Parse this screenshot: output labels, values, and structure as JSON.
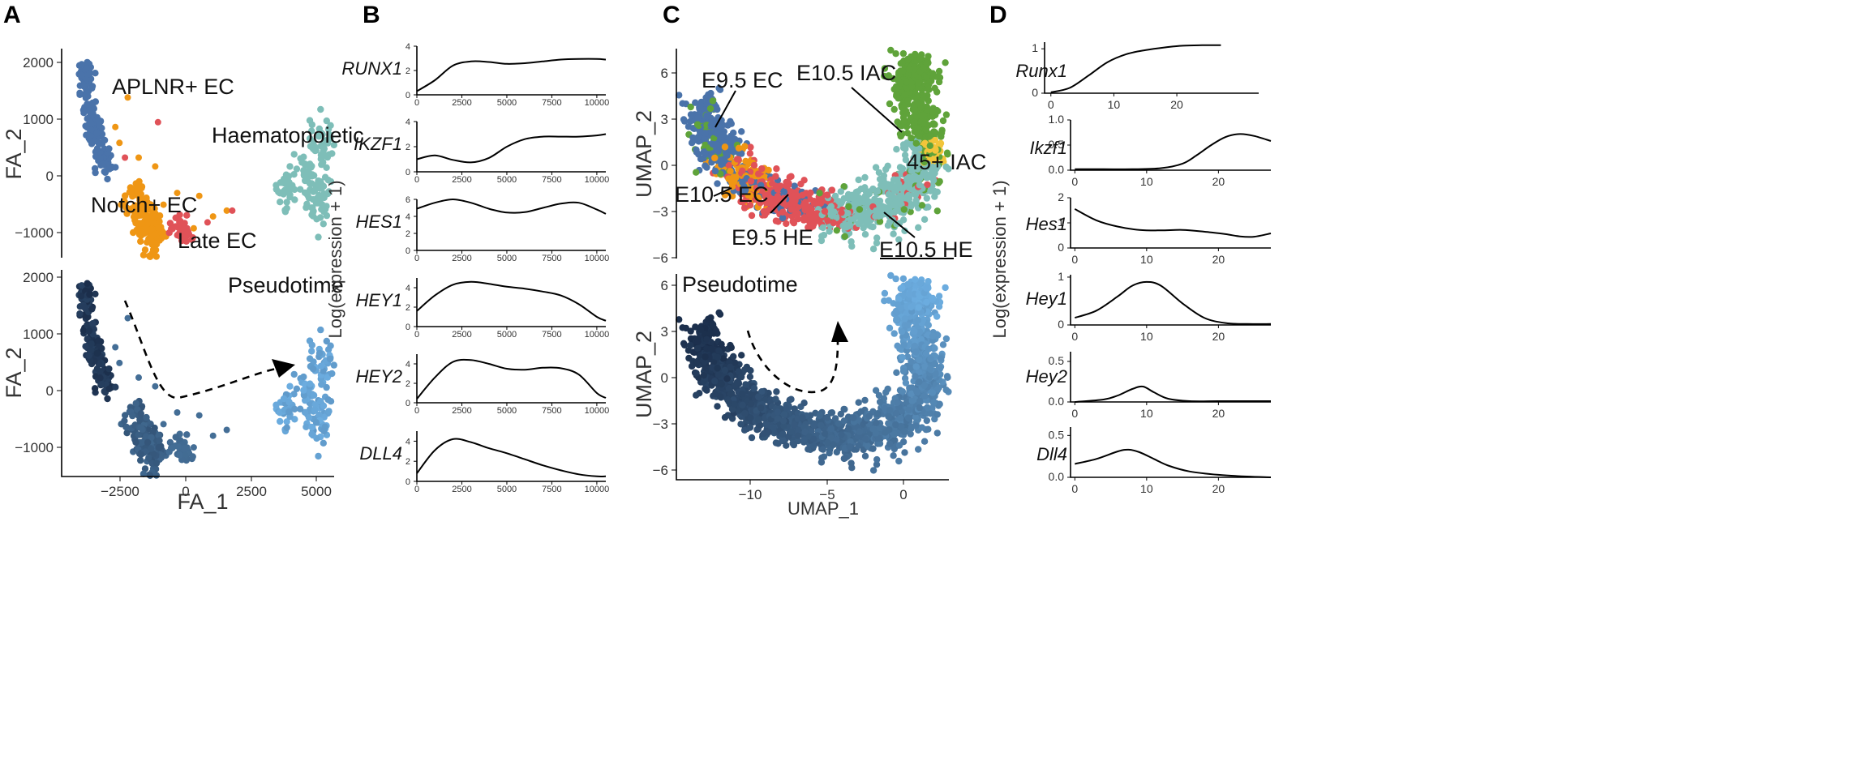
{
  "panel_labels": [
    "A",
    "B",
    "C",
    "D"
  ],
  "colors": {
    "aplnr": "#4a73aa",
    "notch": "#ef9614",
    "late": "#e05258",
    "haem": "#7ebeb8",
    "iac": "#5fa33a",
    "iac45": "#f2c53a",
    "pseudo_start": "#1b2e4b",
    "pseudo_end": "#6cade0"
  },
  "chart_data": [
    {
      "id": "A_top",
      "type": "scatter",
      "xlabel": "",
      "ylabel": "FA_2",
      "y_ticks": [
        "2000",
        "1000",
        "0",
        "−1000"
      ],
      "xlim": [
        -4700,
        5200
      ],
      "ylim": [
        -1400,
        2150
      ],
      "annotations": [
        "APLNR+ EC",
        "Haematopoietic",
        "Notch+ EC",
        "Late EC"
      ],
      "series": [
        {
          "name": "APLNR+ EC",
          "color": "#4a73aa",
          "centroid": [
            -3800,
            1300
          ]
        },
        {
          "name": "Notch+ EC",
          "color": "#ef9614",
          "centroid": [
            -1700,
            -700
          ]
        },
        {
          "name": "Late EC",
          "color": "#e05258",
          "centroid": [
            -300,
            -950
          ]
        },
        {
          "name": "Haematopoietic",
          "color": "#7ebeb8",
          "centroid": [
            4300,
            -250
          ]
        }
      ]
    },
    {
      "id": "A_bottom",
      "type": "scatter",
      "title": "Pseudotime",
      "xlabel": "FA_1",
      "ylabel": "FA_2",
      "x_ticks": [
        "−2500",
        "0",
        "2500",
        "5000"
      ],
      "y_ticks": [
        "2000",
        "1000",
        "0",
        "−1000"
      ],
      "xlim": [
        -4700,
        5200
      ],
      "ylim": [
        -1400,
        2150
      ]
    },
    {
      "id": "B",
      "type": "line",
      "ylabel": "Log(expression + 1)",
      "x_ticks": [
        "0",
        "2500",
        "5000",
        "7500",
        "10000"
      ],
      "xlim": [
        0,
        10500
      ],
      "series": [
        {
          "name": "RUNX1",
          "y_ticks": [
            "4",
            "2",
            "0"
          ],
          "ylim": [
            0,
            4
          ],
          "x": [
            0,
            1000,
            2000,
            3000,
            4000,
            5000,
            6000,
            7000,
            8000,
            9000,
            10000,
            10500
          ],
          "y": [
            0.3,
            1.2,
            2.4,
            2.75,
            2.7,
            2.55,
            2.6,
            2.75,
            2.9,
            2.95,
            2.95,
            2.9
          ]
        },
        {
          "name": "IKZF1",
          "y_ticks": [
            "4",
            "2",
            "0"
          ],
          "ylim": [
            0,
            4
          ],
          "x": [
            0,
            1000,
            2000,
            3000,
            4000,
            5000,
            6000,
            7000,
            8000,
            9000,
            10000,
            10500
          ],
          "y": [
            1.0,
            1.3,
            0.95,
            0.75,
            1.1,
            2.0,
            2.6,
            2.8,
            2.8,
            2.8,
            2.9,
            3.0
          ]
        },
        {
          "name": "HES1",
          "y_ticks": [
            "6",
            "4",
            "2",
            "0"
          ],
          "ylim": [
            0,
            6
          ],
          "x": [
            0,
            1000,
            2000,
            3000,
            4000,
            5000,
            6000,
            7000,
            8000,
            9000,
            10000,
            10500
          ],
          "y": [
            4.9,
            5.6,
            6.0,
            5.6,
            4.9,
            4.45,
            4.5,
            5.0,
            5.5,
            5.6,
            4.8,
            4.3
          ]
        },
        {
          "name": "HEY1",
          "y_ticks": [
            "4",
            "2",
            "0"
          ],
          "ylim": [
            0,
            5
          ],
          "x": [
            0,
            1000,
            2000,
            3000,
            4000,
            5000,
            6000,
            7000,
            8000,
            9000,
            10000,
            10500
          ],
          "y": [
            1.6,
            3.2,
            4.3,
            4.6,
            4.4,
            4.1,
            3.9,
            3.6,
            3.2,
            2.3,
            1.0,
            0.6
          ]
        },
        {
          "name": "HEY2",
          "y_ticks": [
            "4",
            "2",
            "0"
          ],
          "ylim": [
            0,
            5
          ],
          "x": [
            0,
            1000,
            2000,
            3000,
            4000,
            5000,
            6000,
            7000,
            8000,
            9000,
            10000,
            10500
          ],
          "y": [
            0.4,
            2.6,
            4.2,
            4.4,
            4.0,
            3.5,
            3.4,
            3.6,
            3.55,
            2.9,
            1.0,
            0.5
          ]
        },
        {
          "name": "DLL4",
          "y_ticks": [
            "4",
            "2",
            "0"
          ],
          "ylim": [
            0,
            5
          ],
          "x": [
            0,
            1000,
            2000,
            3000,
            4000,
            5000,
            6000,
            7000,
            8000,
            9000,
            10000,
            10500
          ],
          "y": [
            0.8,
            3.1,
            4.2,
            3.9,
            3.3,
            2.8,
            2.2,
            1.6,
            1.1,
            0.7,
            0.5,
            0.5
          ]
        }
      ]
    },
    {
      "id": "C_top",
      "type": "scatter",
      "ylabel": "UMAP_2",
      "y_ticks": [
        "6",
        "3",
        "0",
        "−3",
        "−6"
      ],
      "xlim": [
        -15,
        2.8
      ],
      "ylim": [
        -6.3,
        7
      ],
      "annotations": [
        "E9.5 EC",
        "E10.5 IAC",
        "45+ IAC",
        "E10.5 EC",
        "E9.5 HE",
        "E10.5 HE"
      ],
      "series": [
        {
          "name": "E9.5 EC",
          "color": "#4a73aa",
          "centroid": [
            -13,
            2.5
          ]
        },
        {
          "name": "E10.5 EC",
          "color": "#ef9614",
          "centroid": [
            -12.5,
            0.3
          ]
        },
        {
          "name": "E9.5 HE",
          "color": "#e05258",
          "centroid": [
            -8.3,
            -2.6
          ]
        },
        {
          "name": "E10.5 HE",
          "color": "#7ebeb8",
          "centroid": [
            -2.5,
            -3.0
          ]
        },
        {
          "name": "E10.5 IAC",
          "color": "#5fa33a",
          "centroid": [
            0.5,
            3.5
          ]
        },
        {
          "name": "45+ IAC",
          "color": "#f2c53a",
          "centroid": [
            1.7,
            0.8
          ]
        }
      ]
    },
    {
      "id": "C_bottom",
      "type": "scatter",
      "title": "Pseudotime",
      "xlabel": "UMAP_1",
      "ylabel": "UMAP_2",
      "x_ticks": [
        "−10",
        "−5",
        "0"
      ],
      "y_ticks": [
        "6",
        "3",
        "0",
        "−3",
        "−6"
      ],
      "xlim": [
        -15,
        2.8
      ],
      "ylim": [
        -6.3,
        7
      ]
    },
    {
      "id": "D",
      "type": "line",
      "ylabel": "Log(expression + 1)",
      "x_ticks": [
        "0",
        "10",
        "20"
      ],
      "series": [
        {
          "name": "Runx1",
          "y_ticks": [
            "1",
            "0"
          ],
          "ylim": [
            0,
            1.15
          ],
          "xlim": [
            -1,
            33
          ],
          "x": [
            0,
            3,
            6,
            9,
            12,
            15,
            18,
            21,
            24,
            27
          ],
          "y": [
            0.02,
            0.12,
            0.4,
            0.7,
            0.88,
            0.97,
            1.03,
            1.07,
            1.08,
            1.08
          ]
        },
        {
          "name": "Ikzf1",
          "y_ticks": [
            "1.0",
            "0.5",
            "0.0"
          ],
          "ylim": [
            0,
            1.0
          ],
          "xlim": [
            -0.6,
            27.3
          ],
          "x": [
            0,
            4,
            8,
            12,
            15,
            17,
            19,
            21,
            23,
            25,
            27.3
          ],
          "y": [
            0.02,
            0.02,
            0.02,
            0.04,
            0.13,
            0.3,
            0.5,
            0.66,
            0.72,
            0.68,
            0.58
          ]
        },
        {
          "name": "Hes1",
          "y_ticks": [
            "2",
            "1",
            "0"
          ],
          "ylim": [
            0,
            2.0
          ],
          "xlim": [
            -0.6,
            27.3
          ],
          "x": [
            0,
            3,
            6,
            9,
            12,
            15,
            18,
            21,
            23,
            25,
            27.3
          ],
          "y": [
            1.55,
            1.1,
            0.85,
            0.72,
            0.7,
            0.72,
            0.65,
            0.55,
            0.46,
            0.45,
            0.58
          ]
        },
        {
          "name": "Hey1",
          "y_ticks": [
            "1",
            "0"
          ],
          "ylim": [
            0,
            1.05
          ],
          "xlim": [
            -0.6,
            27.3
          ],
          "x": [
            0,
            3,
            6,
            8,
            10,
            12,
            15,
            18,
            21,
            24,
            27.3
          ],
          "y": [
            0.15,
            0.3,
            0.6,
            0.82,
            0.9,
            0.82,
            0.45,
            0.15,
            0.04,
            0.02,
            0.02
          ]
        },
        {
          "name": "Hey2",
          "y_ticks": [
            "0.5",
            "0.0"
          ],
          "ylim": [
            0,
            0.62
          ],
          "xlim": [
            -0.6,
            27.3
          ],
          "x": [
            0,
            4,
            6,
            8,
            9.5,
            11,
            13,
            16,
            20,
            24,
            27.3
          ],
          "y": [
            0.0,
            0.03,
            0.08,
            0.16,
            0.19,
            0.12,
            0.04,
            0.01,
            0.01,
            0.01,
            0.01
          ]
        },
        {
          "name": "Dll4",
          "y_ticks": [
            "0.5",
            "0.0"
          ],
          "ylim": [
            0,
            0.6
          ],
          "xlim": [
            -0.6,
            27.3
          ],
          "x": [
            0,
            3,
            6,
            7.5,
            9,
            11,
            13,
            16,
            20,
            24,
            27.3
          ],
          "y": [
            0.16,
            0.22,
            0.31,
            0.33,
            0.3,
            0.22,
            0.14,
            0.07,
            0.03,
            0.01,
            0.0
          ]
        }
      ]
    }
  ]
}
